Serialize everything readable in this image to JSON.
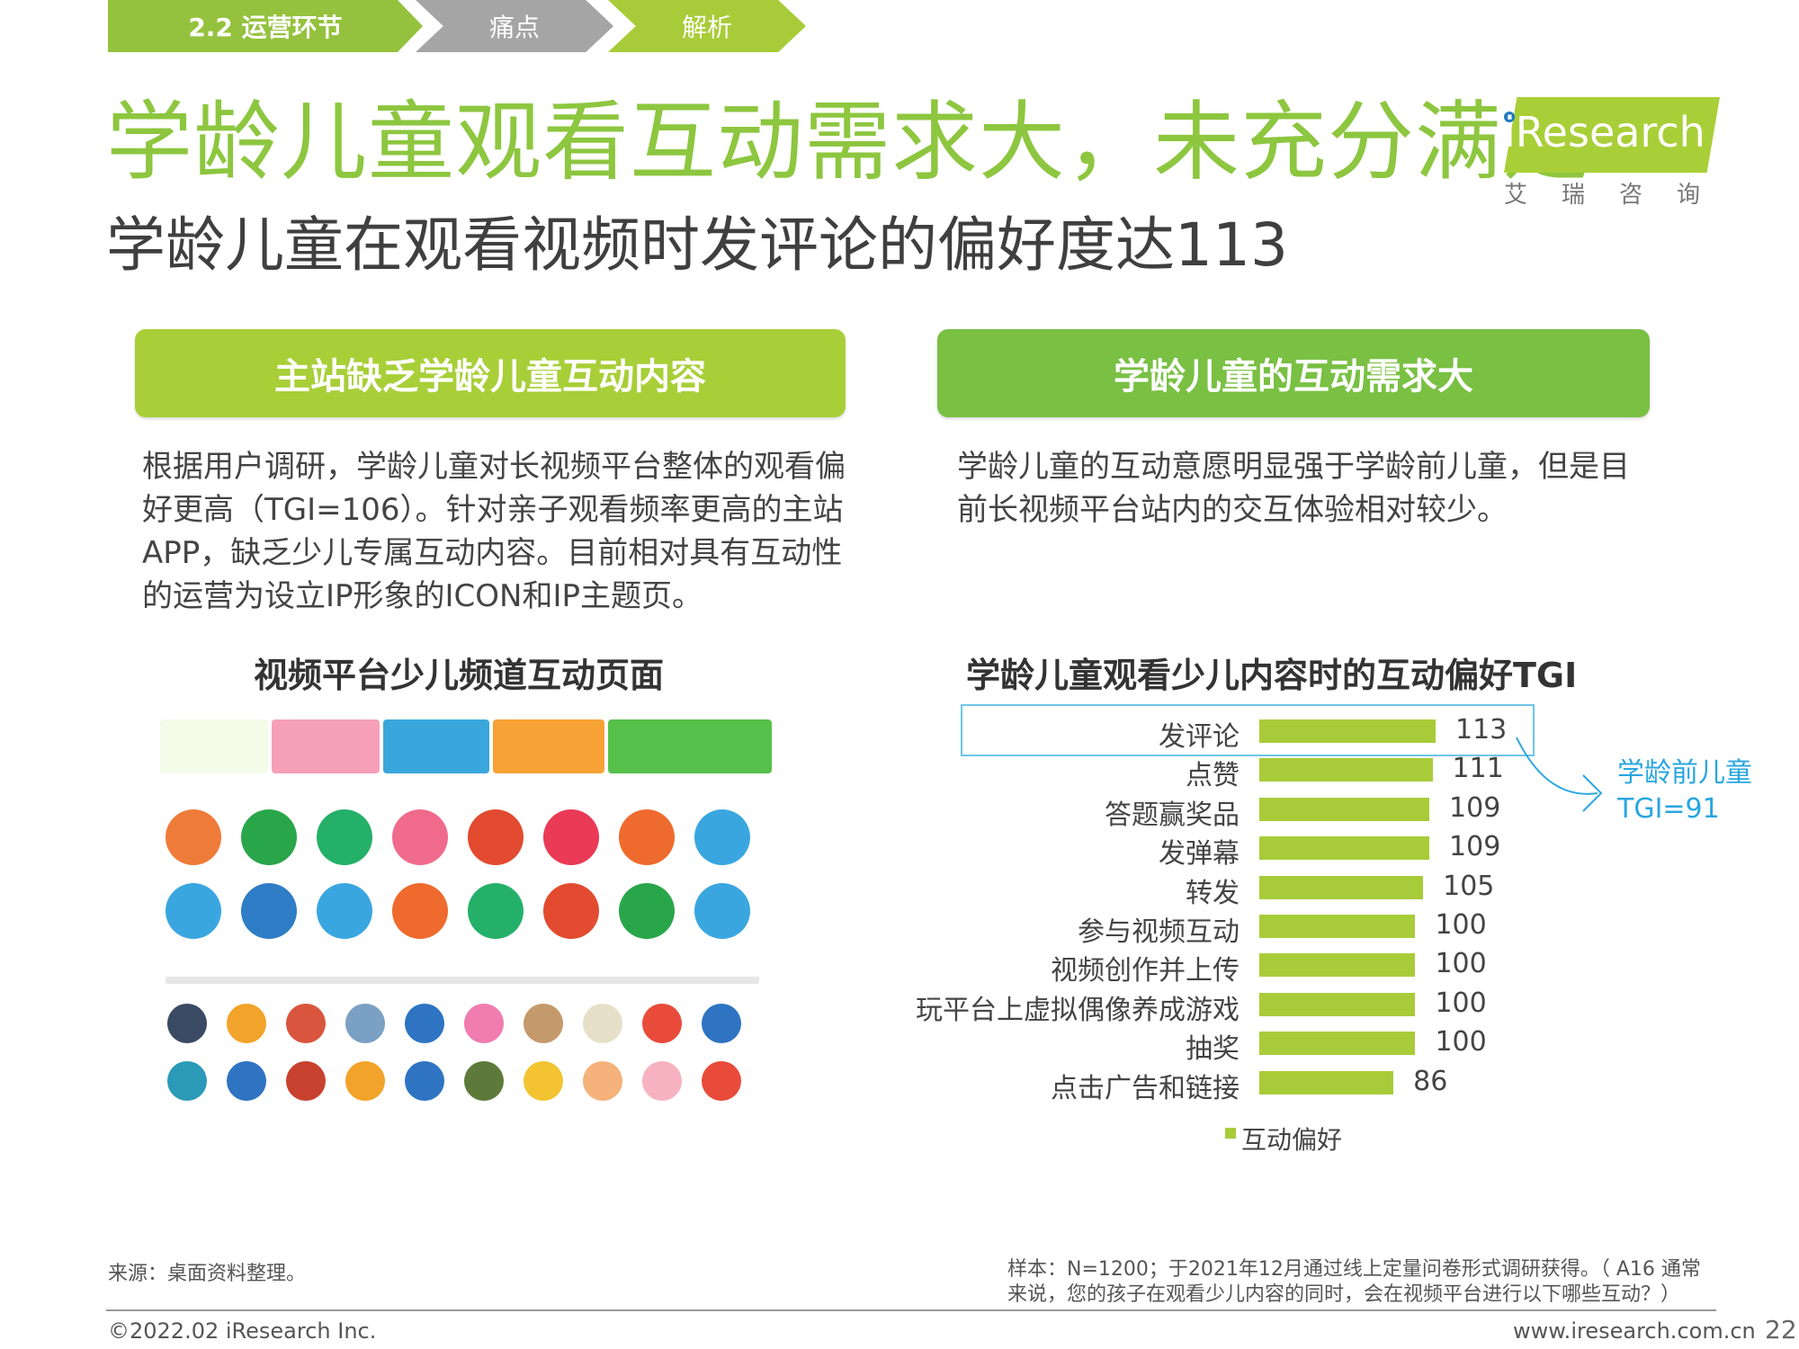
{
  "breadcrumb": {
    "section": "2.2  运营环节",
    "step2": "痛点",
    "step3": "解析"
  },
  "title": "学龄儿童观看互动需求大，未充分满足",
  "subtitle": "学龄儿童在观看视频时发评论的偏好度达113",
  "logo": {
    "text": "iResearch",
    "cn": "艾瑞咨询"
  },
  "left_section": {
    "header": "主站缺乏学龄儿童互动内容",
    "body": "根据用户调研，学龄儿童对长视频平台整体的观看偏好更高（TGI=106）。针对亲子观看频率更高的主站APP，缺乏少儿专属互动内容。目前相对具有互动性的运营为设立IP形象的ICON和IP主题页。",
    "panel_title": "视频平台少儿频道互动页面"
  },
  "right_section": {
    "header": "学龄儿童的互动需求大",
    "body": "学龄儿童的互动意愿明显强于学龄前儿童，但是目前长视频平台站内的交互体验相对较少。"
  },
  "chart_data": {
    "type": "bar",
    "orientation": "horizontal",
    "title": "学龄儿童观看少儿内容时的互动偏好TGI",
    "categories": [
      "发评论",
      "点赞",
      "答题赢奖品",
      "发弹幕",
      "转发",
      "参与视频互动",
      "视频创作并上传",
      "玩平台上虚拟偶像养成游戏",
      "抽奖",
      "点击广告和链接"
    ],
    "series": [
      {
        "name": "互动偏好",
        "values": [
          113,
          111,
          109,
          109,
          105,
          100,
          100,
          100,
          100,
          86
        ],
        "color": "#a8cc39"
      }
    ],
    "value_labels": [
      "113",
      "111",
      "109",
      "109",
      "105",
      "100",
      "100",
      "100",
      "100",
      "86"
    ],
    "xlim": [
      0,
      113
    ],
    "legend": "bottom",
    "annotation": {
      "line1": "学龄前儿童",
      "line2": "TGI=91",
      "color": "#29a6e0"
    },
    "highlight_color": "#6ec5e8"
  },
  "footer": {
    "source": "来源：桌面资料整理。",
    "note": "样本：N=1200；于2021年12月通过线上定量问卷形式调研获得。（ A16 通常来说，您的孩子在观看少儿内容的同时，会在视频平台进行以下哪些互动？）",
    "copyright": "©2022.02 iResearch Inc.",
    "url": "www.iresearch.com.cn",
    "page": "22"
  },
  "colors": {
    "green_title": "#8dc63f",
    "green_light": "#a8cf38",
    "green_dark": "#79c043",
    "gray_crumb": "#a5a5a5"
  }
}
